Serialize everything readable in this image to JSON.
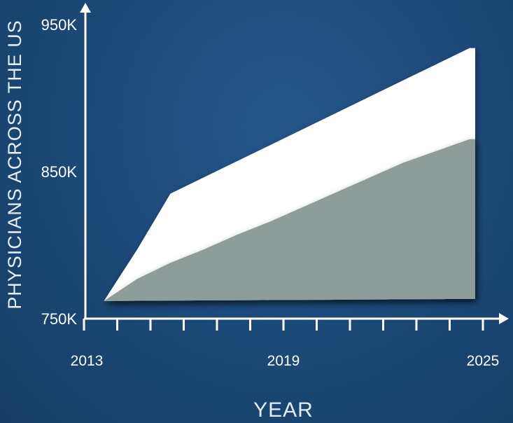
{
  "chart_data": {
    "type": "area",
    "title": "",
    "xlabel": "YEAR",
    "ylabel": "PHYSICIANS ACROSS THE US",
    "xlim": [
      2013,
      2025
    ],
    "ylim": [
      750000,
      975000
    ],
    "x_ticks": [
      2013,
      2014,
      2015,
      2016,
      2017,
      2018,
      2019,
      2020,
      2021,
      2022,
      2023,
      2024,
      2025
    ],
    "x_tick_labels": [
      {
        "x": 2013,
        "label": "2013"
      },
      {
        "x": 2019,
        "label": "2019"
      },
      {
        "x": 2025,
        "label": "2025"
      }
    ],
    "y_tick_labels": [
      {
        "y": 750000,
        "label": "750K"
      },
      {
        "y": 850000,
        "label": "850K"
      },
      {
        "y": 950000,
        "label": "950K"
      }
    ],
    "series": [
      {
        "color": "#ffffff",
        "x": [
          2013.6,
          2014.6,
          2015.6,
          2016.6,
          2017.6,
          2018.6,
          2019.6,
          2020.6,
          2021.6,
          2022.6,
          2023.6,
          2024.6
        ],
        "values": [
          762000,
          797000,
          835000,
          846000,
          857000,
          868000,
          879000,
          890000,
          901000,
          912000,
          923000,
          934000
        ]
      },
      {
        "color": "#8e9c9a",
        "x": [
          2013.6,
          2014.6,
          2015.6,
          2016.6,
          2017.6,
          2018.6,
          2019.6,
          2020.6,
          2021.6,
          2022.6,
          2023.6,
          2024.6
        ],
        "values": [
          762000,
          777000,
          788000,
          797000,
          807000,
          816000,
          826000,
          836000,
          846000,
          856000,
          864000,
          872000
        ]
      }
    ],
    "colors": {
      "background": "#1d4a7a",
      "axis": "#ffffff"
    }
  }
}
